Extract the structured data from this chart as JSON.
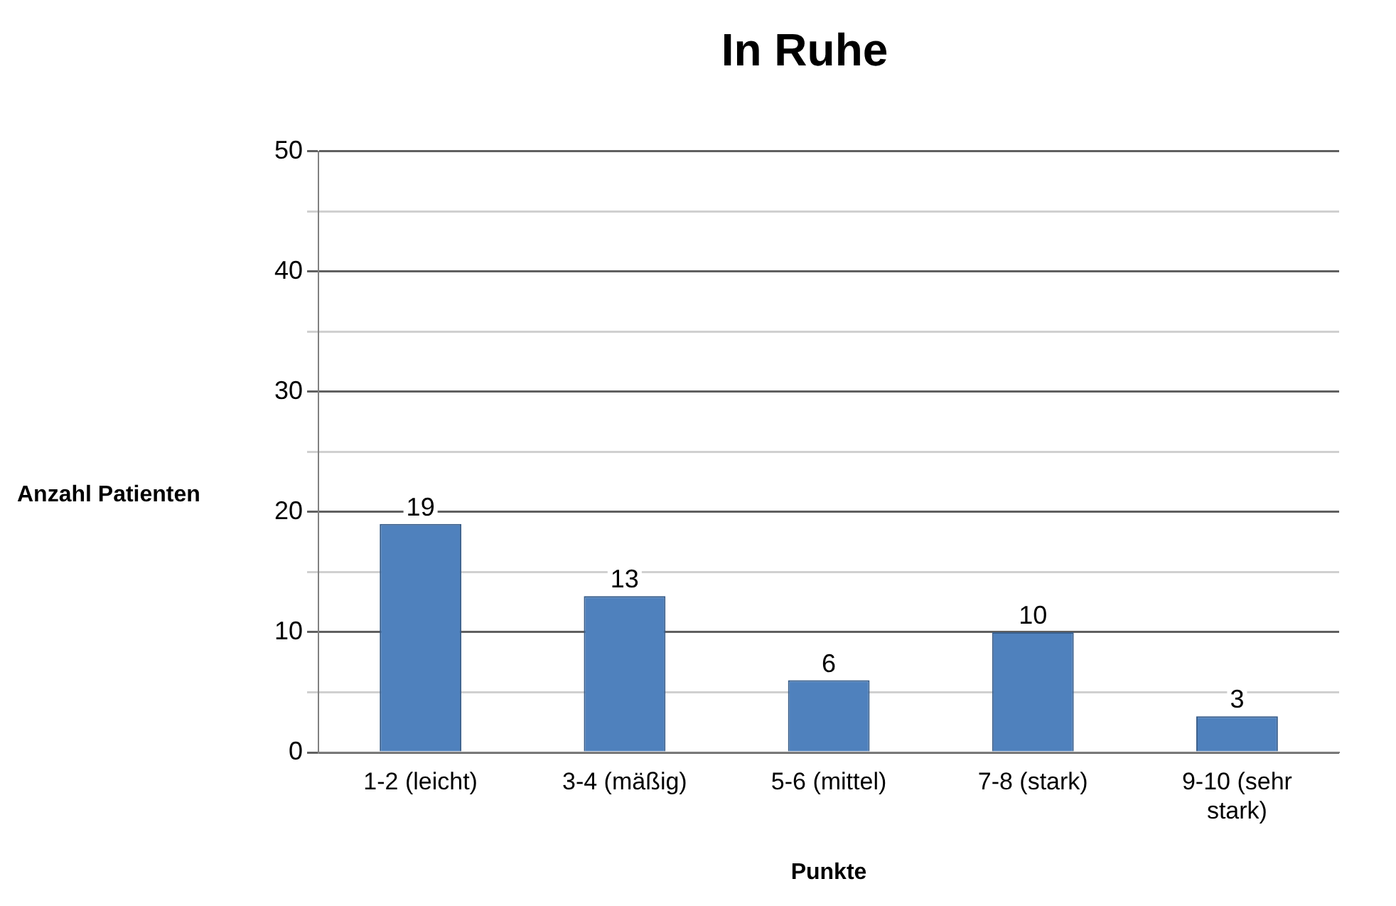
{
  "chart_data": {
    "type": "bar",
    "title": "In Ruhe",
    "xlabel": "Punkte",
    "ylabel": "Anzahl Patienten",
    "categories": [
      "1-2 (leicht)",
      "3-4 (mäßig)",
      "5-6 (mittel)",
      "7-8 (stark)",
      "9-10 (sehr stark)"
    ],
    "values": [
      19,
      13,
      6,
      10,
      3
    ],
    "color": "#4f81bd",
    "ylim": [
      0,
      50
    ],
    "yticks": [
      0,
      {
        "value": 5,
        "label": null
      },
      10,
      {
        "value": 15,
        "label": null
      },
      20,
      {
        "value": 25,
        "label": null
      },
      30,
      {
        "value": 35,
        "label": null
      },
      40,
      {
        "value": 45,
        "label": null
      },
      50
    ],
    "grid": "y",
    "data_labels": true,
    "legend": false
  }
}
